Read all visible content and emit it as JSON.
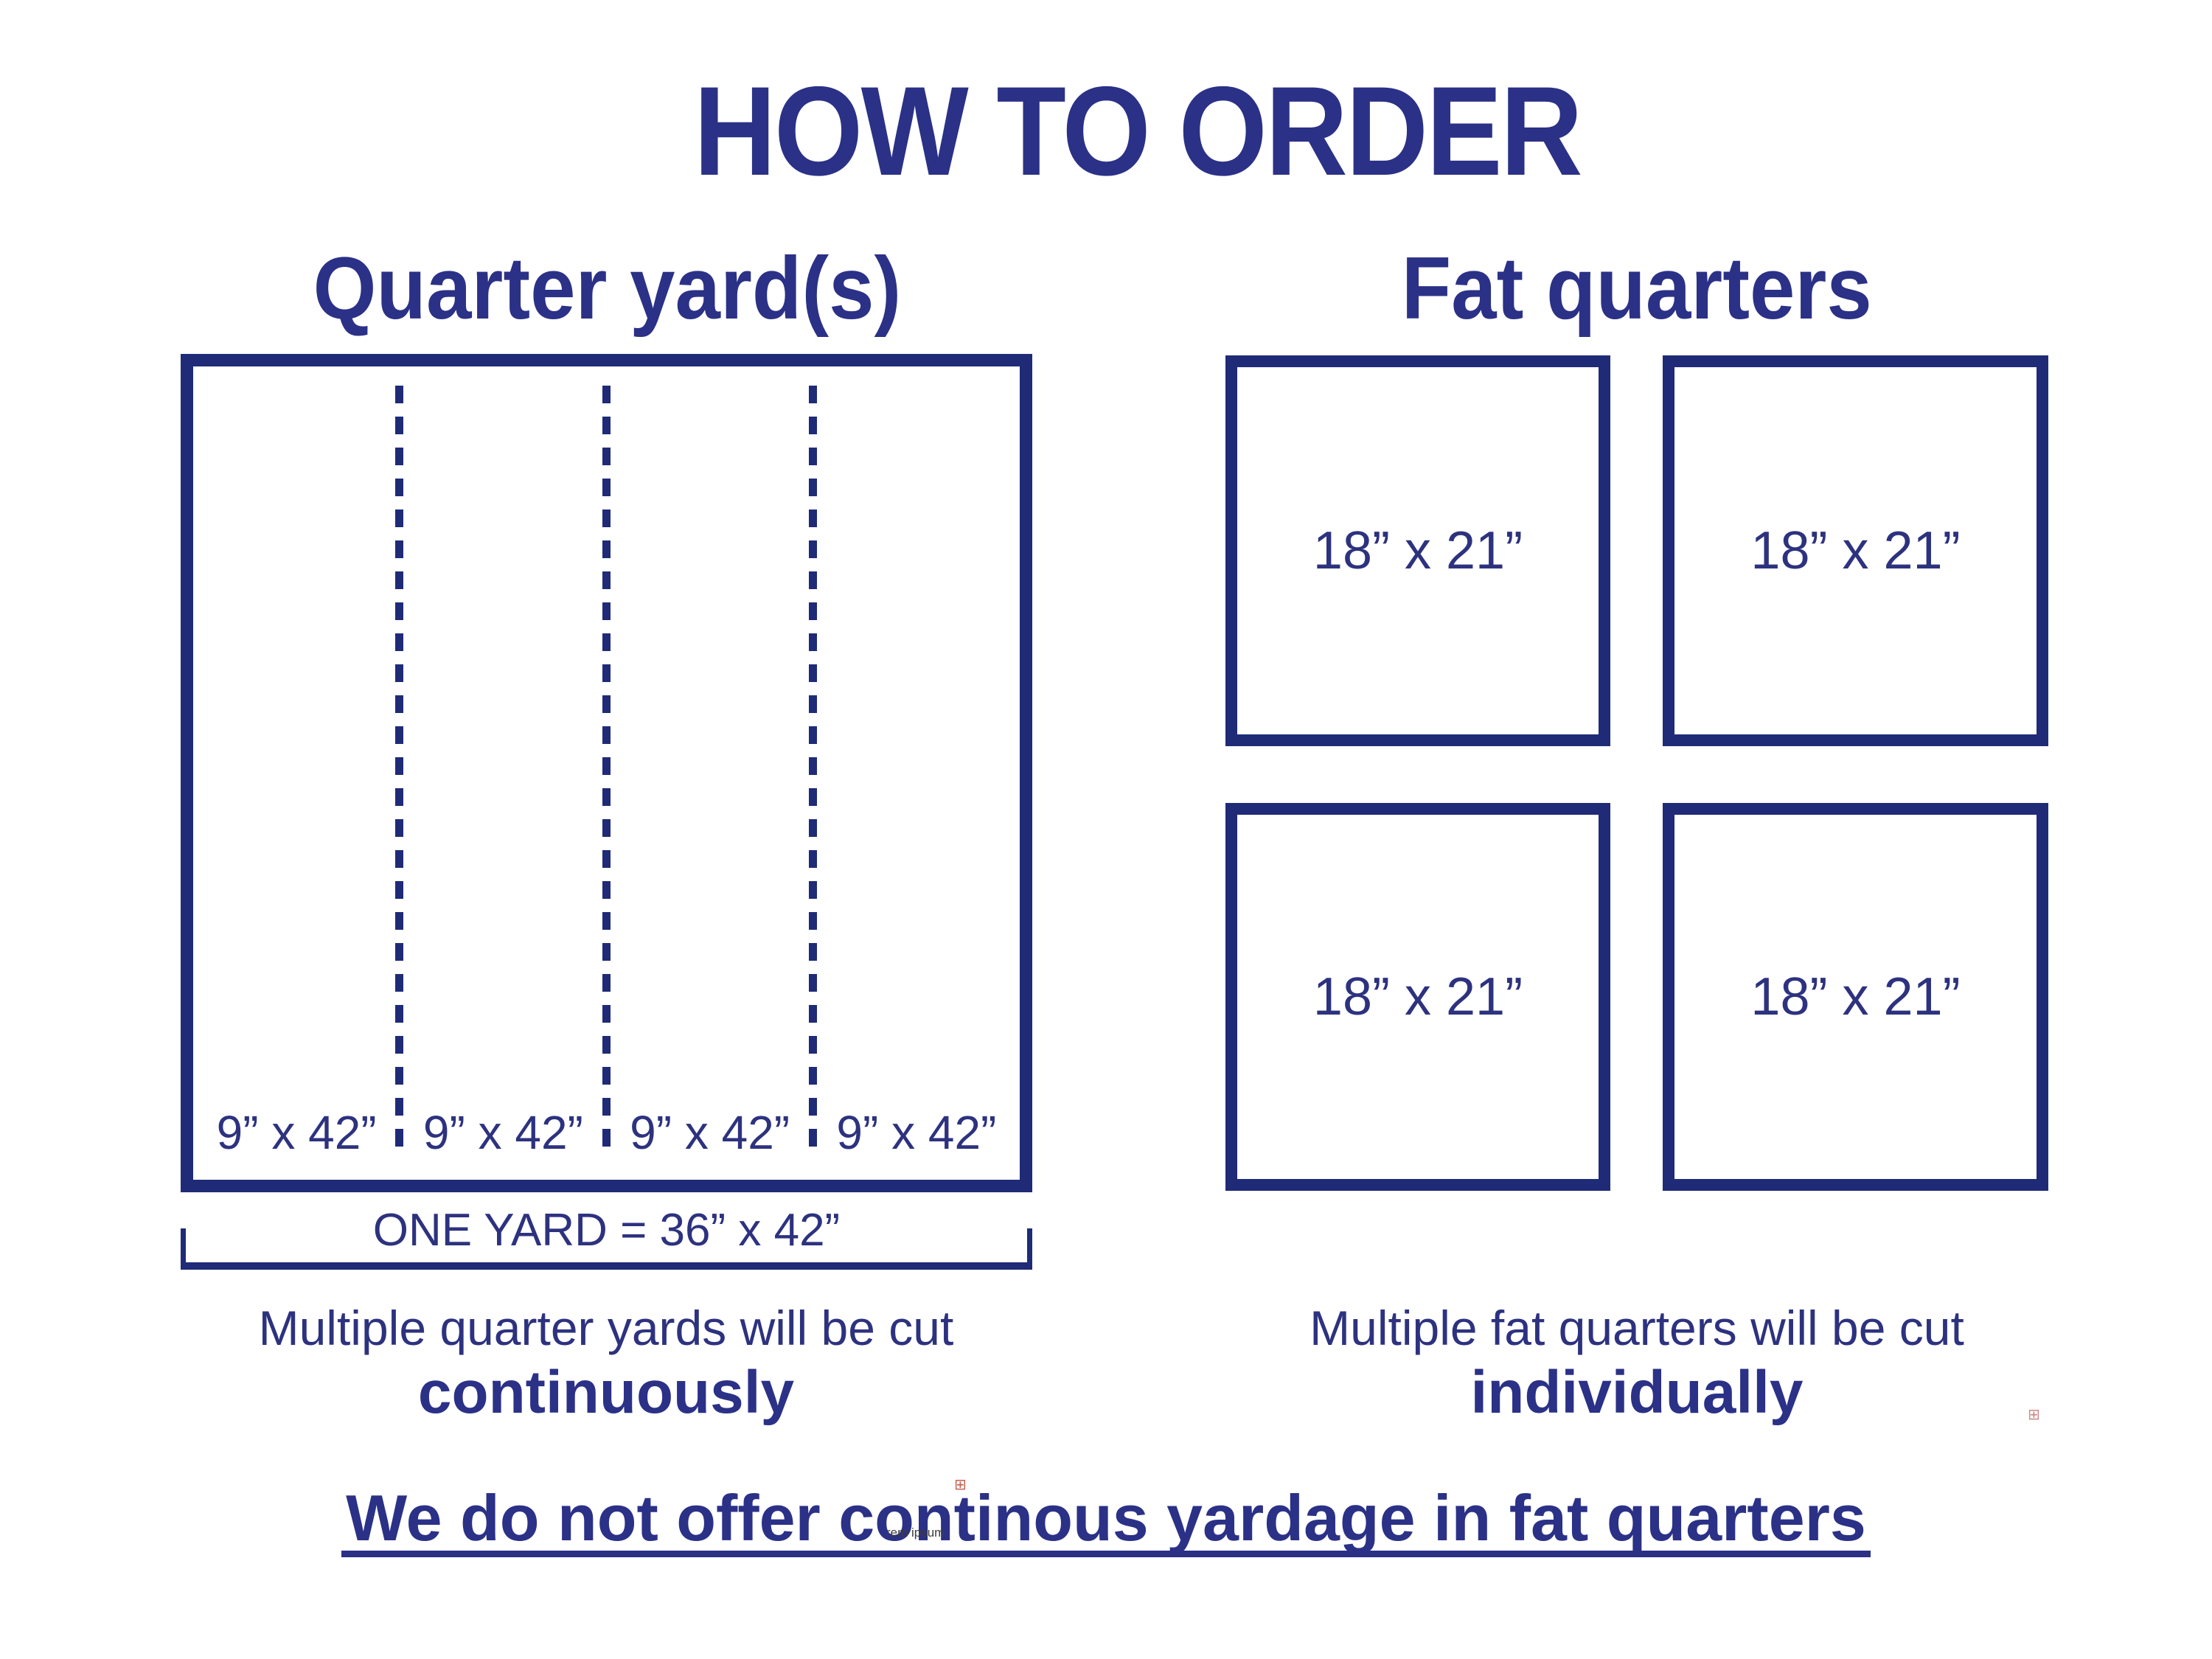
{
  "page": {
    "title": "HOW TO ORDER"
  },
  "colors": {
    "navy_border": "#1f2b77",
    "navy_text": "#2d327f",
    "navy_heading": "#2b3186",
    "marker_red": "#b94632"
  },
  "quarter_yards": {
    "heading": "Quarter yard(s)",
    "strips": [
      "9” x 42”",
      "9” x 42”",
      "9” x 42”",
      "9” x 42”"
    ],
    "bracket_label": "ONE YARD = 36” x 42”",
    "cut_note": {
      "line1": "Multiple quarter yards will be cut",
      "line2": "continuously"
    }
  },
  "fat_quarters": {
    "heading": "Fat quarters",
    "pieces": [
      "18” x 21”",
      "18” x 21”",
      "18” x 21”",
      "18” x 21”"
    ],
    "cut_note": {
      "line1": "Multiple fat quarters will be cut",
      "line2": "individually"
    }
  },
  "footer": {
    "notice": "We do not offer continous yardage in fat quarters"
  },
  "artifacts": {
    "marker_glyph": "⊞",
    "watermark_fragment": "rem ipsum"
  }
}
